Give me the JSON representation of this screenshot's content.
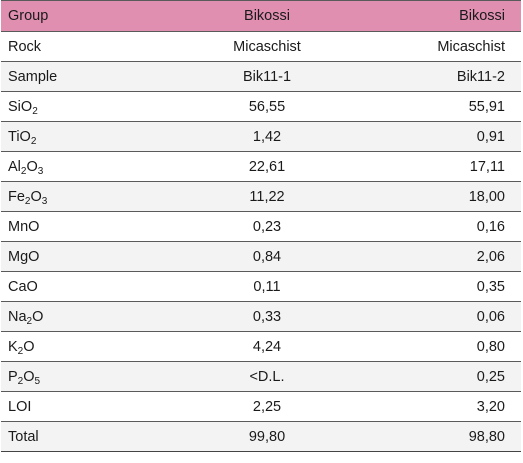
{
  "header": {
    "col1": "Group",
    "col2": "Bikossi",
    "col3": "Bikossi"
  },
  "rows": [
    {
      "label": "Rock",
      "v1": "Micaschist",
      "v2": "Micaschist"
    },
    {
      "label": "Sample",
      "v1": "Bik11-1",
      "v2": "Bik11-2"
    },
    {
      "label_parts": [
        "Si",
        "O",
        "2"
      ],
      "v1": "56,55",
      "v2": "55,91"
    },
    {
      "label_parts": [
        "Ti",
        "O",
        "2"
      ],
      "v1": "1,42",
      "v2": "0,91"
    },
    {
      "label_parts": [
        "Al",
        "2",
        "O",
        "3"
      ],
      "v1": "22,61",
      "v2": "17,11"
    },
    {
      "label_parts": [
        "Fe",
        "2",
        "O",
        "3"
      ],
      "v1": "11,22",
      "v2": "18,00"
    },
    {
      "label": "MnO",
      "v1": "0,23",
      "v2": "0,16"
    },
    {
      "label": "MgO",
      "v1": "0,84",
      "v2": "2,06"
    },
    {
      "label": "CaO",
      "v1": "0,11",
      "v2": "0,35"
    },
    {
      "label_parts": [
        "Na",
        "2",
        "O"
      ],
      "v1": "0,33",
      "v2": "0,06"
    },
    {
      "label_parts": [
        "K",
        "2",
        "O"
      ],
      "v1": "4,24",
      "v2": "0,80"
    },
    {
      "label_parts": [
        "P",
        "2",
        "O",
        "5"
      ],
      "v1": "<D.L.",
      "v2": "0,25"
    },
    {
      "label": "LOI",
      "v1": "2,25",
      "v2": "3,20"
    },
    {
      "label": "Total",
      "v1": "99,80",
      "v2": "98,80"
    }
  ],
  "colors": {
    "header_bg": "#e08fb0",
    "stripe_bg": "#f3f3f3",
    "rule": "#5a5a5a"
  }
}
